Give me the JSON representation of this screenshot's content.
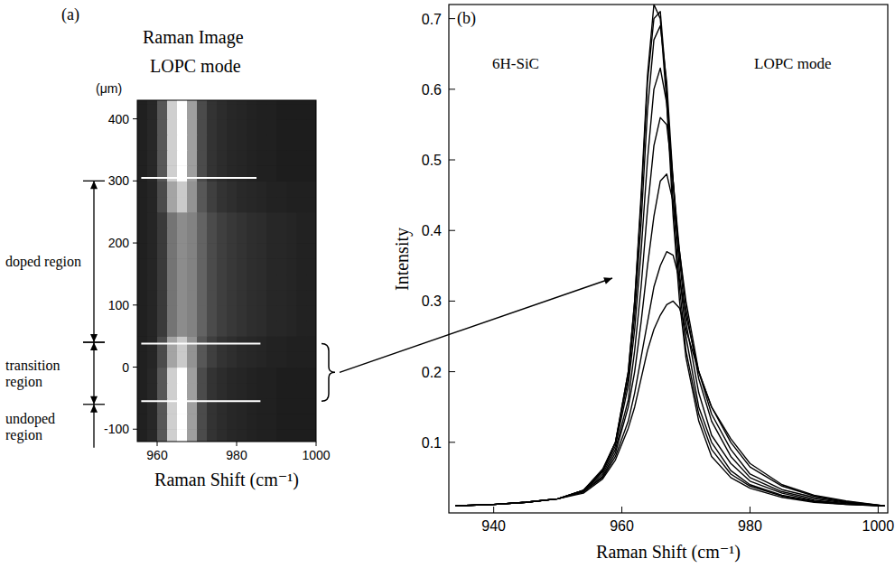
{
  "chart_data": [
    {
      "type": "heatmap",
      "panel": "(a)",
      "title": "Raman Image",
      "subtitle": "LOPC mode",
      "ylabel": "(μm)",
      "xlabel": "Raman Shift (cm⁻¹)",
      "xlim": [
        955,
        1000
      ],
      "ylim": [
        -120,
        430
      ],
      "xticks": [
        960,
        980,
        1000
      ],
      "yticks": [
        400,
        300,
        200,
        100,
        0,
        -100
      ],
      "x": [
        956.25,
        958.75,
        961.25,
        963.75,
        966.25,
        968.75,
        971.25,
        973.75,
        976.25,
        978.75,
        981.25,
        983.75,
        986.25,
        988.75,
        991.25,
        993.75,
        996.25,
        998.75
      ],
      "y": [
        -112.5,
        -87.5,
        -62.5,
        -37.5,
        -12.5,
        12.5,
        37.5,
        62.5,
        87.5,
        112.5,
        137.5,
        162.5,
        187.5,
        212.5,
        237.5,
        262.5,
        287.5,
        312.5,
        337.5,
        362.5,
        387.5,
        412.5,
        437.5
      ],
      "values": [
        [
          0.07,
          0.1,
          0.3,
          0.8,
          1.0,
          0.6,
          0.25,
          0.15,
          0.12,
          0.1,
          0.09,
          0.08,
          0.07,
          0.07,
          0.06,
          0.06,
          0.06,
          0.06
        ],
        [
          0.07,
          0.1,
          0.3,
          0.8,
          1.0,
          0.6,
          0.25,
          0.15,
          0.12,
          0.1,
          0.09,
          0.08,
          0.07,
          0.07,
          0.06,
          0.06,
          0.06,
          0.06
        ],
        [
          0.07,
          0.1,
          0.3,
          0.8,
          1.0,
          0.6,
          0.25,
          0.15,
          0.12,
          0.1,
          0.09,
          0.08,
          0.07,
          0.07,
          0.06,
          0.06,
          0.06,
          0.06
        ],
        [
          0.07,
          0.1,
          0.3,
          0.8,
          1.0,
          0.6,
          0.25,
          0.15,
          0.12,
          0.1,
          0.09,
          0.08,
          0.07,
          0.07,
          0.06,
          0.06,
          0.06,
          0.06
        ],
        [
          0.07,
          0.1,
          0.3,
          0.8,
          1.0,
          0.6,
          0.25,
          0.15,
          0.12,
          0.1,
          0.09,
          0.08,
          0.07,
          0.07,
          0.06,
          0.06,
          0.06,
          0.06
        ],
        [
          0.07,
          0.09,
          0.25,
          0.62,
          0.78,
          0.55,
          0.3,
          0.2,
          0.15,
          0.13,
          0.11,
          0.1,
          0.09,
          0.08,
          0.08,
          0.07,
          0.07,
          0.07
        ],
        [
          0.07,
          0.09,
          0.25,
          0.62,
          0.78,
          0.55,
          0.3,
          0.2,
          0.15,
          0.13,
          0.11,
          0.1,
          0.09,
          0.08,
          0.08,
          0.07,
          0.07,
          0.07
        ],
        [
          0.07,
          0.09,
          0.18,
          0.42,
          0.52,
          0.48,
          0.35,
          0.25,
          0.2,
          0.17,
          0.15,
          0.13,
          0.12,
          0.1,
          0.1,
          0.09,
          0.08,
          0.08
        ],
        [
          0.07,
          0.09,
          0.18,
          0.42,
          0.52,
          0.48,
          0.35,
          0.25,
          0.2,
          0.17,
          0.15,
          0.13,
          0.12,
          0.1,
          0.1,
          0.09,
          0.08,
          0.08
        ],
        [
          0.07,
          0.09,
          0.18,
          0.42,
          0.52,
          0.48,
          0.35,
          0.25,
          0.2,
          0.17,
          0.15,
          0.13,
          0.12,
          0.1,
          0.1,
          0.09,
          0.08,
          0.08
        ],
        [
          0.07,
          0.09,
          0.18,
          0.42,
          0.52,
          0.48,
          0.35,
          0.25,
          0.2,
          0.17,
          0.15,
          0.13,
          0.12,
          0.1,
          0.1,
          0.09,
          0.08,
          0.08
        ],
        [
          0.07,
          0.09,
          0.18,
          0.42,
          0.52,
          0.48,
          0.35,
          0.25,
          0.2,
          0.17,
          0.15,
          0.13,
          0.12,
          0.1,
          0.1,
          0.09,
          0.08,
          0.08
        ],
        [
          0.07,
          0.09,
          0.18,
          0.42,
          0.52,
          0.48,
          0.35,
          0.25,
          0.2,
          0.17,
          0.15,
          0.13,
          0.12,
          0.1,
          0.1,
          0.09,
          0.08,
          0.08
        ],
        [
          0.07,
          0.09,
          0.18,
          0.42,
          0.52,
          0.48,
          0.35,
          0.25,
          0.2,
          0.17,
          0.15,
          0.13,
          0.12,
          0.1,
          0.1,
          0.09,
          0.08,
          0.08
        ],
        [
          0.07,
          0.09,
          0.18,
          0.42,
          0.52,
          0.48,
          0.35,
          0.25,
          0.2,
          0.17,
          0.15,
          0.13,
          0.12,
          0.1,
          0.1,
          0.09,
          0.08,
          0.08
        ],
        [
          0.07,
          0.09,
          0.25,
          0.62,
          0.78,
          0.55,
          0.3,
          0.2,
          0.15,
          0.13,
          0.11,
          0.1,
          0.09,
          0.08,
          0.08,
          0.07,
          0.07,
          0.07
        ],
        [
          0.07,
          0.09,
          0.25,
          0.62,
          0.78,
          0.55,
          0.3,
          0.2,
          0.15,
          0.13,
          0.11,
          0.1,
          0.09,
          0.08,
          0.08,
          0.07,
          0.07,
          0.07
        ],
        [
          0.07,
          0.1,
          0.3,
          0.8,
          1.0,
          0.6,
          0.25,
          0.15,
          0.12,
          0.1,
          0.09,
          0.08,
          0.07,
          0.07,
          0.06,
          0.06,
          0.06,
          0.06
        ],
        [
          0.07,
          0.1,
          0.3,
          0.8,
          1.0,
          0.6,
          0.25,
          0.15,
          0.12,
          0.1,
          0.09,
          0.08,
          0.07,
          0.07,
          0.06,
          0.06,
          0.06,
          0.06
        ],
        [
          0.07,
          0.1,
          0.3,
          0.8,
          1.0,
          0.6,
          0.25,
          0.15,
          0.12,
          0.1,
          0.09,
          0.08,
          0.07,
          0.07,
          0.06,
          0.06,
          0.06,
          0.06
        ],
        [
          0.07,
          0.1,
          0.3,
          0.8,
          1.0,
          0.6,
          0.25,
          0.15,
          0.12,
          0.1,
          0.09,
          0.08,
          0.07,
          0.07,
          0.06,
          0.06,
          0.06,
          0.06
        ],
        [
          0.07,
          0.1,
          0.3,
          0.8,
          1.0,
          0.6,
          0.25,
          0.15,
          0.12,
          0.1,
          0.09,
          0.08,
          0.07,
          0.07,
          0.06,
          0.06,
          0.06,
          0.06
        ],
        [
          0.07,
          0.1,
          0.3,
          0.8,
          1.0,
          0.6,
          0.25,
          0.15,
          0.12,
          0.1,
          0.09,
          0.08,
          0.07,
          0.07,
          0.06,
          0.06,
          0.06,
          0.06
        ]
      ],
      "hlines": [
        {
          "y": 305,
          "x": [
            956,
            985
          ]
        },
        {
          "y": 38,
          "x": [
            956,
            986
          ]
        },
        {
          "y": -55,
          "x": [
            956,
            986
          ]
        }
      ],
      "regions": [
        {
          "text": "doped region",
          "from": 300,
          "to": 40
        },
        {
          "text": "transition region",
          "from": 40,
          "to": -60
        },
        {
          "text": "undoped region",
          "from": -60,
          "to": -130
        }
      ]
    },
    {
      "type": "line",
      "panel": "(b)",
      "title": "6H-SiC",
      "subtitle": "LOPC mode",
      "xlabel": "Raman Shift (cm⁻¹)",
      "ylabel": "Intensity",
      "xlim": [
        933,
        1001.5
      ],
      "ylim": [
        0,
        0.72
      ],
      "xticks": [
        940,
        960,
        980,
        1000
      ],
      "yticks": [
        0.1,
        0.2,
        0.3,
        0.4,
        0.5,
        0.6,
        0.7
      ],
      "x": [
        934,
        940,
        945,
        950,
        954,
        957,
        959,
        961,
        962,
        963,
        964,
        965,
        966,
        967,
        968,
        969,
        970,
        972,
        974,
        977,
        980,
        985,
        990,
        995,
        1001
      ],
      "series": [
        {
          "color": "#000000",
          "values": [
            0.01,
            0.012,
            0.015,
            0.02,
            0.03,
            0.06,
            0.1,
            0.2,
            0.3,
            0.45,
            0.62,
            0.72,
            0.7,
            0.58,
            0.42,
            0.3,
            0.22,
            0.13,
            0.08,
            0.05,
            0.035,
            0.022,
            0.015,
            0.012,
            0.01
          ]
        },
        {
          "color": "#000000",
          "values": [
            0.01,
            0.012,
            0.015,
            0.02,
            0.032,
            0.062,
            0.1,
            0.2,
            0.3,
            0.44,
            0.61,
            0.7,
            0.71,
            0.6,
            0.44,
            0.32,
            0.23,
            0.14,
            0.09,
            0.055,
            0.038,
            0.024,
            0.016,
            0.012,
            0.01
          ]
        },
        {
          "color": "#000000",
          "values": [
            0.01,
            0.012,
            0.015,
            0.02,
            0.032,
            0.06,
            0.1,
            0.19,
            0.28,
            0.41,
            0.57,
            0.67,
            0.69,
            0.61,
            0.47,
            0.34,
            0.25,
            0.15,
            0.1,
            0.06,
            0.04,
            0.025,
            0.017,
            0.013,
            0.01
          ]
        },
        {
          "color": "#000000",
          "values": [
            0.01,
            0.012,
            0.015,
            0.02,
            0.032,
            0.058,
            0.095,
            0.18,
            0.26,
            0.37,
            0.5,
            0.6,
            0.63,
            0.58,
            0.47,
            0.36,
            0.27,
            0.17,
            0.11,
            0.07,
            0.045,
            0.028,
            0.018,
            0.013,
            0.01
          ]
        },
        {
          "color": "#000000",
          "values": [
            0.01,
            0.012,
            0.015,
            0.02,
            0.031,
            0.055,
            0.09,
            0.16,
            0.23,
            0.32,
            0.43,
            0.52,
            0.56,
            0.55,
            0.47,
            0.37,
            0.29,
            0.19,
            0.13,
            0.08,
            0.05,
            0.03,
            0.02,
            0.014,
            0.01
          ]
        },
        {
          "color": "#000000",
          "values": [
            0.01,
            0.012,
            0.015,
            0.02,
            0.03,
            0.052,
            0.085,
            0.15,
            0.2,
            0.27,
            0.35,
            0.42,
            0.47,
            0.48,
            0.44,
            0.37,
            0.3,
            0.2,
            0.14,
            0.09,
            0.055,
            0.033,
            0.022,
            0.015,
            0.01
          ]
        },
        {
          "color": "#000000",
          "values": [
            0.01,
            0.012,
            0.015,
            0.02,
            0.03,
            0.05,
            0.08,
            0.13,
            0.17,
            0.22,
            0.27,
            0.32,
            0.35,
            0.37,
            0.365,
            0.33,
            0.28,
            0.2,
            0.15,
            0.1,
            0.065,
            0.038,
            0.024,
            0.016,
            0.01
          ]
        },
        {
          "color": "#000000",
          "values": [
            0.01,
            0.012,
            0.015,
            0.02,
            0.028,
            0.048,
            0.075,
            0.12,
            0.15,
            0.19,
            0.23,
            0.26,
            0.28,
            0.295,
            0.3,
            0.29,
            0.26,
            0.2,
            0.15,
            0.105,
            0.07,
            0.04,
            0.025,
            0.017,
            0.01
          ]
        }
      ]
    }
  ]
}
